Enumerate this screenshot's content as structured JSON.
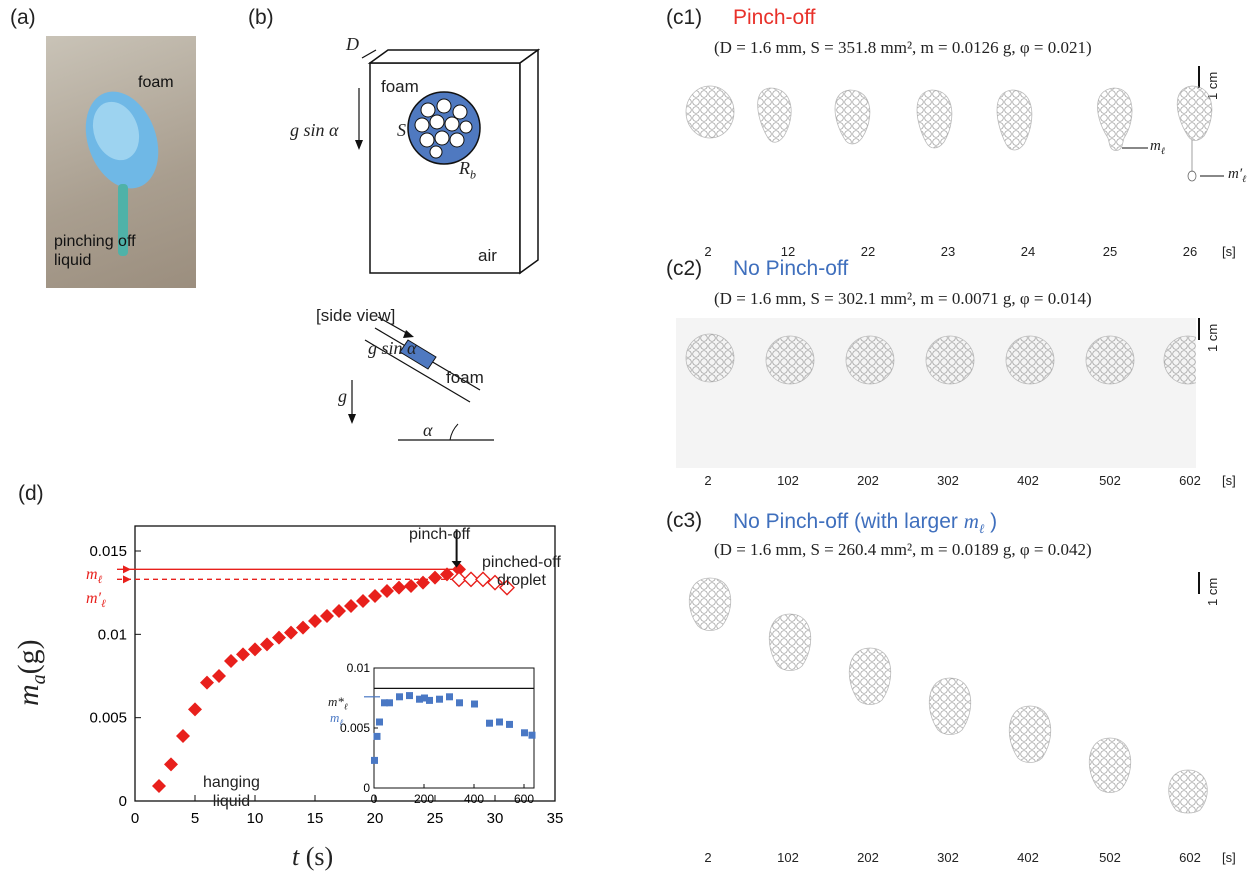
{
  "panel_a": {
    "label": "(a)",
    "foam_label": "foam",
    "liquid_label": "pinching off\nliquid"
  },
  "panel_b": {
    "label": "(b)",
    "D": "D",
    "foam": "foam",
    "g_sin_alpha": "g sin α",
    "S": "S",
    "Rb": "R",
    "Rb_sub": "b",
    "air": "air",
    "side_view": "[side view]",
    "g": "g",
    "alpha": "α",
    "side_foam": "foam",
    "side_g_sin_alpha": "g sin α"
  },
  "panel_c1": {
    "label": "(c1)",
    "title": "Pinch-off",
    "params": "(D = 1.6 mm, S = 351.8 mm², m = 0.0126 g, φ = 0.021)",
    "scale": "1 cm",
    "times": [
      "2",
      "12",
      "22",
      "23",
      "24",
      "25",
      "26"
    ],
    "unit": "[s]",
    "m_l": "m",
    "m_l_prime": "m′"
  },
  "panel_c2": {
    "label": "(c2)",
    "title": "No Pinch-off",
    "params": "(D = 1.6 mm, S = 302.1 mm², m = 0.0071 g, φ = 0.014)",
    "scale": "1 cm",
    "times": [
      "2",
      "102",
      "202",
      "302",
      "402",
      "502",
      "602"
    ],
    "unit": "[s]"
  },
  "panel_c3": {
    "label": "(c3)",
    "title": "No Pinch-off (with larger ",
    "title_m": "m",
    "title_end": " )",
    "params": "(D = 1.6 mm, S = 260.4 mm², m = 0.0189 g, φ = 0.042)",
    "scale": "1 cm",
    "times": [
      "2",
      "102",
      "202",
      "302",
      "402",
      "502",
      "602"
    ],
    "unit": "[s]"
  },
  "panel_d": {
    "label": "(d)",
    "ylabel": "m",
    "ylabel_sub": "a",
    "ylabel_unit": "(g)",
    "xlabel": "t",
    "xlabel_unit": "(s)",
    "annotation_pinchoff": "pinch-off",
    "annotation_pinched": "pinched-off\ndroplet",
    "annotation_hanging": "hanging\nliquid",
    "m_l": "m",
    "m_l_prime": "m′",
    "inset_m_star": "m*",
    "inset_m_l": "m",
    "colors": {
      "red": "#e8201c",
      "blue": "#4a78c4"
    }
  },
  "chart_data": [
    {
      "type": "scatter",
      "xlabel": "t (s)",
      "ylabel": "m_a(g)",
      "xlim": [
        0,
        35
      ],
      "ylim": [
        0,
        0.0165
      ],
      "xticks": [
        "0",
        "5",
        "10",
        "15",
        "20",
        "25",
        "30",
        "35"
      ],
      "yticks": [
        "0",
        "0.005",
        "0.01",
        "0.015"
      ],
      "hlines": [
        {
          "name": "m_ℓ",
          "y": 0.0139,
          "style": "solid"
        },
        {
          "name": "m′_ℓ",
          "y": 0.0133,
          "style": "dashed"
        }
      ],
      "series": [
        {
          "name": "hanging liquid",
          "marker": "diamond-filled",
          "x": [
            2,
            3,
            4,
            5,
            6,
            7,
            8,
            9,
            10,
            11,
            12,
            13,
            14,
            15,
            16,
            17,
            18,
            19,
            20,
            21,
            22,
            23,
            24,
            25,
            26,
            27
          ],
          "y": [
            0.0009,
            0.0022,
            0.0039,
            0.0055,
            0.0071,
            0.0075,
            0.0084,
            0.0088,
            0.0091,
            0.0094,
            0.0098,
            0.0101,
            0.0104,
            0.0108,
            0.0111,
            0.0114,
            0.0117,
            0.012,
            0.0123,
            0.0126,
            0.0128,
            0.0129,
            0.0131,
            0.0134,
            0.0136,
            0.0139
          ]
        },
        {
          "name": "pinched-off droplet",
          "marker": "diamond-open",
          "x": [
            27,
            28,
            29,
            30,
            31
          ],
          "y": [
            0.0133,
            0.0133,
            0.0133,
            0.0131,
            0.0128
          ]
        }
      ]
    },
    {
      "type": "scatter",
      "xlim": [
        0,
        640
      ],
      "ylim": [
        0,
        0.01
      ],
      "xticks": [
        "0",
        "200",
        "400",
        "600"
      ],
      "yticks": [
        "0",
        "0.005",
        "0.01"
      ],
      "hlines": [
        {
          "name": "m*_ℓ",
          "y": 0.0083,
          "style": "solid"
        }
      ],
      "series": [
        {
          "name": "no pinch-off",
          "marker": "square",
          "x": [
            2,
            12,
            22,
            42,
            62,
            102,
            142,
            182,
            202,
            222,
            262,
            302,
            342,
            402,
            462,
            502,
            542,
            602,
            632
          ],
          "y": [
            0.0023,
            0.0043,
            0.0055,
            0.0071,
            0.0071,
            0.0076,
            0.0077,
            0.0074,
            0.0075,
            0.0073,
            0.0074,
            0.0076,
            0.0071,
            0.007,
            0.0054,
            0.0055,
            0.0053,
            0.0046,
            0.0044
          ]
        }
      ]
    }
  ]
}
